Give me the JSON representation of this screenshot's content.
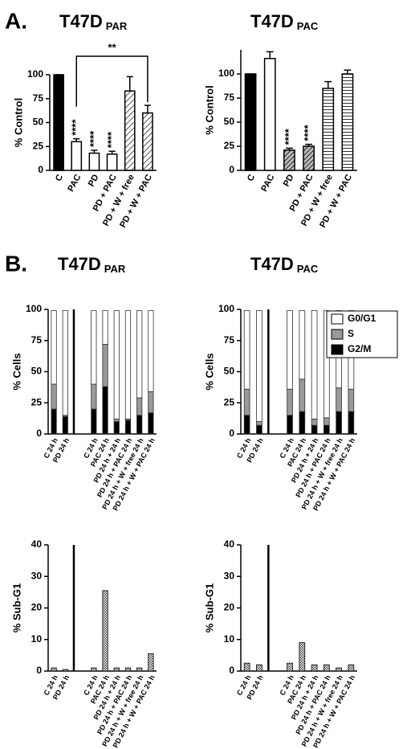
{
  "panel_labels": [
    "A.",
    "B."
  ],
  "chart_data": [
    {
      "type": "bar",
      "title": "T47D",
      "title_subscript": "PAR",
      "y_label": "% Control",
      "categories": [
        "C",
        "PAC",
        "PD",
        "PD + PAC",
        "PD + W + free",
        "PD + W + PAC"
      ],
      "values": [
        100,
        30,
        18,
        17,
        83,
        60
      ],
      "errors": [
        0,
        3,
        3,
        3,
        15,
        8
      ],
      "bar_styles": [
        "solid",
        "open",
        "open",
        "open",
        "diagonal",
        "diagonal"
      ],
      "value_annotations": [
        null,
        "****",
        "****",
        "****",
        null,
        null
      ],
      "bracket": {
        "from": "PAC",
        "to": "PD + W + PAC",
        "label": "**"
      },
      "ylim": [
        0,
        100
      ],
      "yticks": [
        0,
        25,
        50,
        75,
        100
      ]
    },
    {
      "type": "bar",
      "title": "T47D",
      "title_subscript": "PAC",
      "y_label": "% Control",
      "categories": [
        "C",
        "PAC",
        "PD",
        "PD + PAC",
        "PD + W + free",
        "PD + W + PAC"
      ],
      "values": [
        100,
        116,
        21,
        25,
        85,
        100
      ],
      "errors": [
        0,
        7,
        2,
        2,
        7,
        4
      ],
      "bar_styles": [
        "solid",
        "open",
        "diagonal_dark",
        "diagonal_dark",
        "horizontal",
        "horizontal"
      ],
      "value_annotations": [
        null,
        null,
        "****",
        "****",
        null,
        null
      ],
      "ylim": [
        0,
        125
      ],
      "yticks": [
        0,
        25,
        50,
        75,
        100
      ]
    },
    {
      "type": "stacked_bar",
      "title": "T47D",
      "title_subscript": "PAR",
      "y_label": "% Cells",
      "categories": [
        "C 24 h",
        "PD 24 h",
        "C 24 h",
        "PAC 24 h",
        "PD 24 h + 24 h",
        "PD 24 h + PAC 24 h",
        "PD 24 h + W + free 24 h",
        "PD 24 h + W + PAC 24 h"
      ],
      "divider_after": 1,
      "series": [
        {
          "color": "#000000",
          "values": [
            20,
            14,
            20,
            38,
            10,
            11,
            15,
            17
          ]
        },
        {
          "color": "#999999",
          "values": [
            20,
            1,
            20,
            34,
            2,
            1,
            14,
            17
          ]
        },
        {
          "color": "#ffffff",
          "values": [
            59,
            84,
            59,
            27,
            87,
            87,
            70,
            65
          ]
        }
      ],
      "ylim": [
        0,
        100
      ],
      "yticks": [
        0,
        25,
        50,
        75,
        100
      ]
    },
    {
      "type": "stacked_bar",
      "title": "T47D",
      "title_subscript": "PAC",
      "y_label": "% Cells",
      "categories": [
        "C 24 h",
        "PD 24 h",
        "C 24 h",
        "PAC 24 h",
        "PD 24 h + 24 h",
        "PD 24 h + PAC 24 h",
        "PD 24 h + W + free 24 h",
        "PD 24 h + W + PAC 24 h"
      ],
      "divider_after": 1,
      "series": [
        {
          "name": "G2/M",
          "color": "#000000",
          "values": [
            15,
            7,
            15,
            18,
            7,
            7,
            18,
            18
          ]
        },
        {
          "name": "S",
          "color": "#999999",
          "values": [
            21,
            3,
            21,
            26,
            5,
            6,
            19,
            18
          ]
        },
        {
          "name": "G0/G1",
          "color": "#ffffff",
          "values": [
            63,
            89,
            63,
            55,
            87,
            86,
            62,
            63
          ]
        }
      ],
      "legend": "upper right",
      "ylim": [
        0,
        100
      ],
      "yticks": [
        0,
        25,
        50,
        75,
        100
      ]
    },
    {
      "type": "bar",
      "y_label": "% Sub-G1",
      "categories": [
        "C 24 h",
        "PD 24 h",
        "C 24 h",
        "PAC 24 h",
        "PD 24 h + 24 h",
        "PD 24 h + PAC 24 h",
        "PD 24 h + W + free 24 h",
        "PD 24 h + W + PAC 24 h"
      ],
      "divider_after": 1,
      "values": [
        1,
        0.5,
        1,
        25.5,
        1,
        1,
        1,
        5.5
      ],
      "bar_style": "checkered",
      "ylim": [
        0,
        40
      ],
      "yticks": [
        0,
        10,
        20,
        30,
        40
      ]
    },
    {
      "type": "bar",
      "y_label": "% Sub-G1",
      "categories": [
        "C 24 h",
        "PD 24 h",
        "C 24 h",
        "PAC 24 h",
        "PD 24 h + 24 h",
        "PD 24 h + PAC 24 h",
        "PD 24 h + W + free 24 h",
        "PD 24 h + W + PAC 24 h"
      ],
      "divider_after": 1,
      "values": [
        2.5,
        2,
        2.5,
        9,
        2,
        2,
        1,
        2
      ],
      "bar_style": "checkered",
      "ylim": [
        0,
        40
      ],
      "yticks": [
        0,
        10,
        20,
        30,
        40
      ]
    }
  ]
}
